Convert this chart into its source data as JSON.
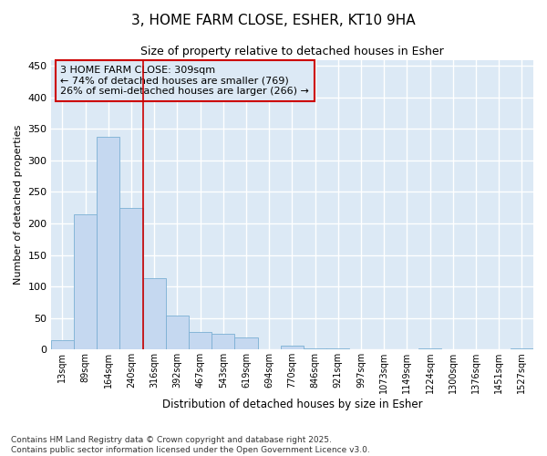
{
  "title1": "3, HOME FARM CLOSE, ESHER, KT10 9HA",
  "title2": "Size of property relative to detached houses in Esher",
  "xlabel": "Distribution of detached houses by size in Esher",
  "ylabel": "Number of detached properties",
  "categories": [
    "13sqm",
    "89sqm",
    "164sqm",
    "240sqm",
    "316sqm",
    "392sqm",
    "467sqm",
    "543sqm",
    "619sqm",
    "694sqm",
    "770sqm",
    "846sqm",
    "921sqm",
    "997sqm",
    "1073sqm",
    "1149sqm",
    "1224sqm",
    "1300sqm",
    "1376sqm",
    "1451sqm",
    "1527sqm"
  ],
  "values": [
    15,
    215,
    338,
    224,
    113,
    54,
    28,
    25,
    19,
    0,
    6,
    1,
    1,
    0,
    0,
    0,
    1,
    0,
    0,
    0,
    2
  ],
  "bar_color": "#c5d8f0",
  "bar_edge_color": "#7bafd4",
  "vline_color": "#cc0000",
  "vline_x_index": 4,
  "annotation_text": "3 HOME FARM CLOSE: 309sqm\n← 74% of detached houses are smaller (769)\n26% of semi-detached houses are larger (266) →",
  "annotation_box_edgecolor": "#cc0000",
  "ylim": [
    0,
    460
  ],
  "yticks": [
    0,
    50,
    100,
    150,
    200,
    250,
    300,
    350,
    400,
    450
  ],
  "plot_bg_color": "#dce9f5",
  "fig_bg_color": "#ffffff",
  "grid_color": "#ffffff",
  "footer": "Contains HM Land Registry data © Crown copyright and database right 2025.\nContains public sector information licensed under the Open Government Licence v3.0."
}
